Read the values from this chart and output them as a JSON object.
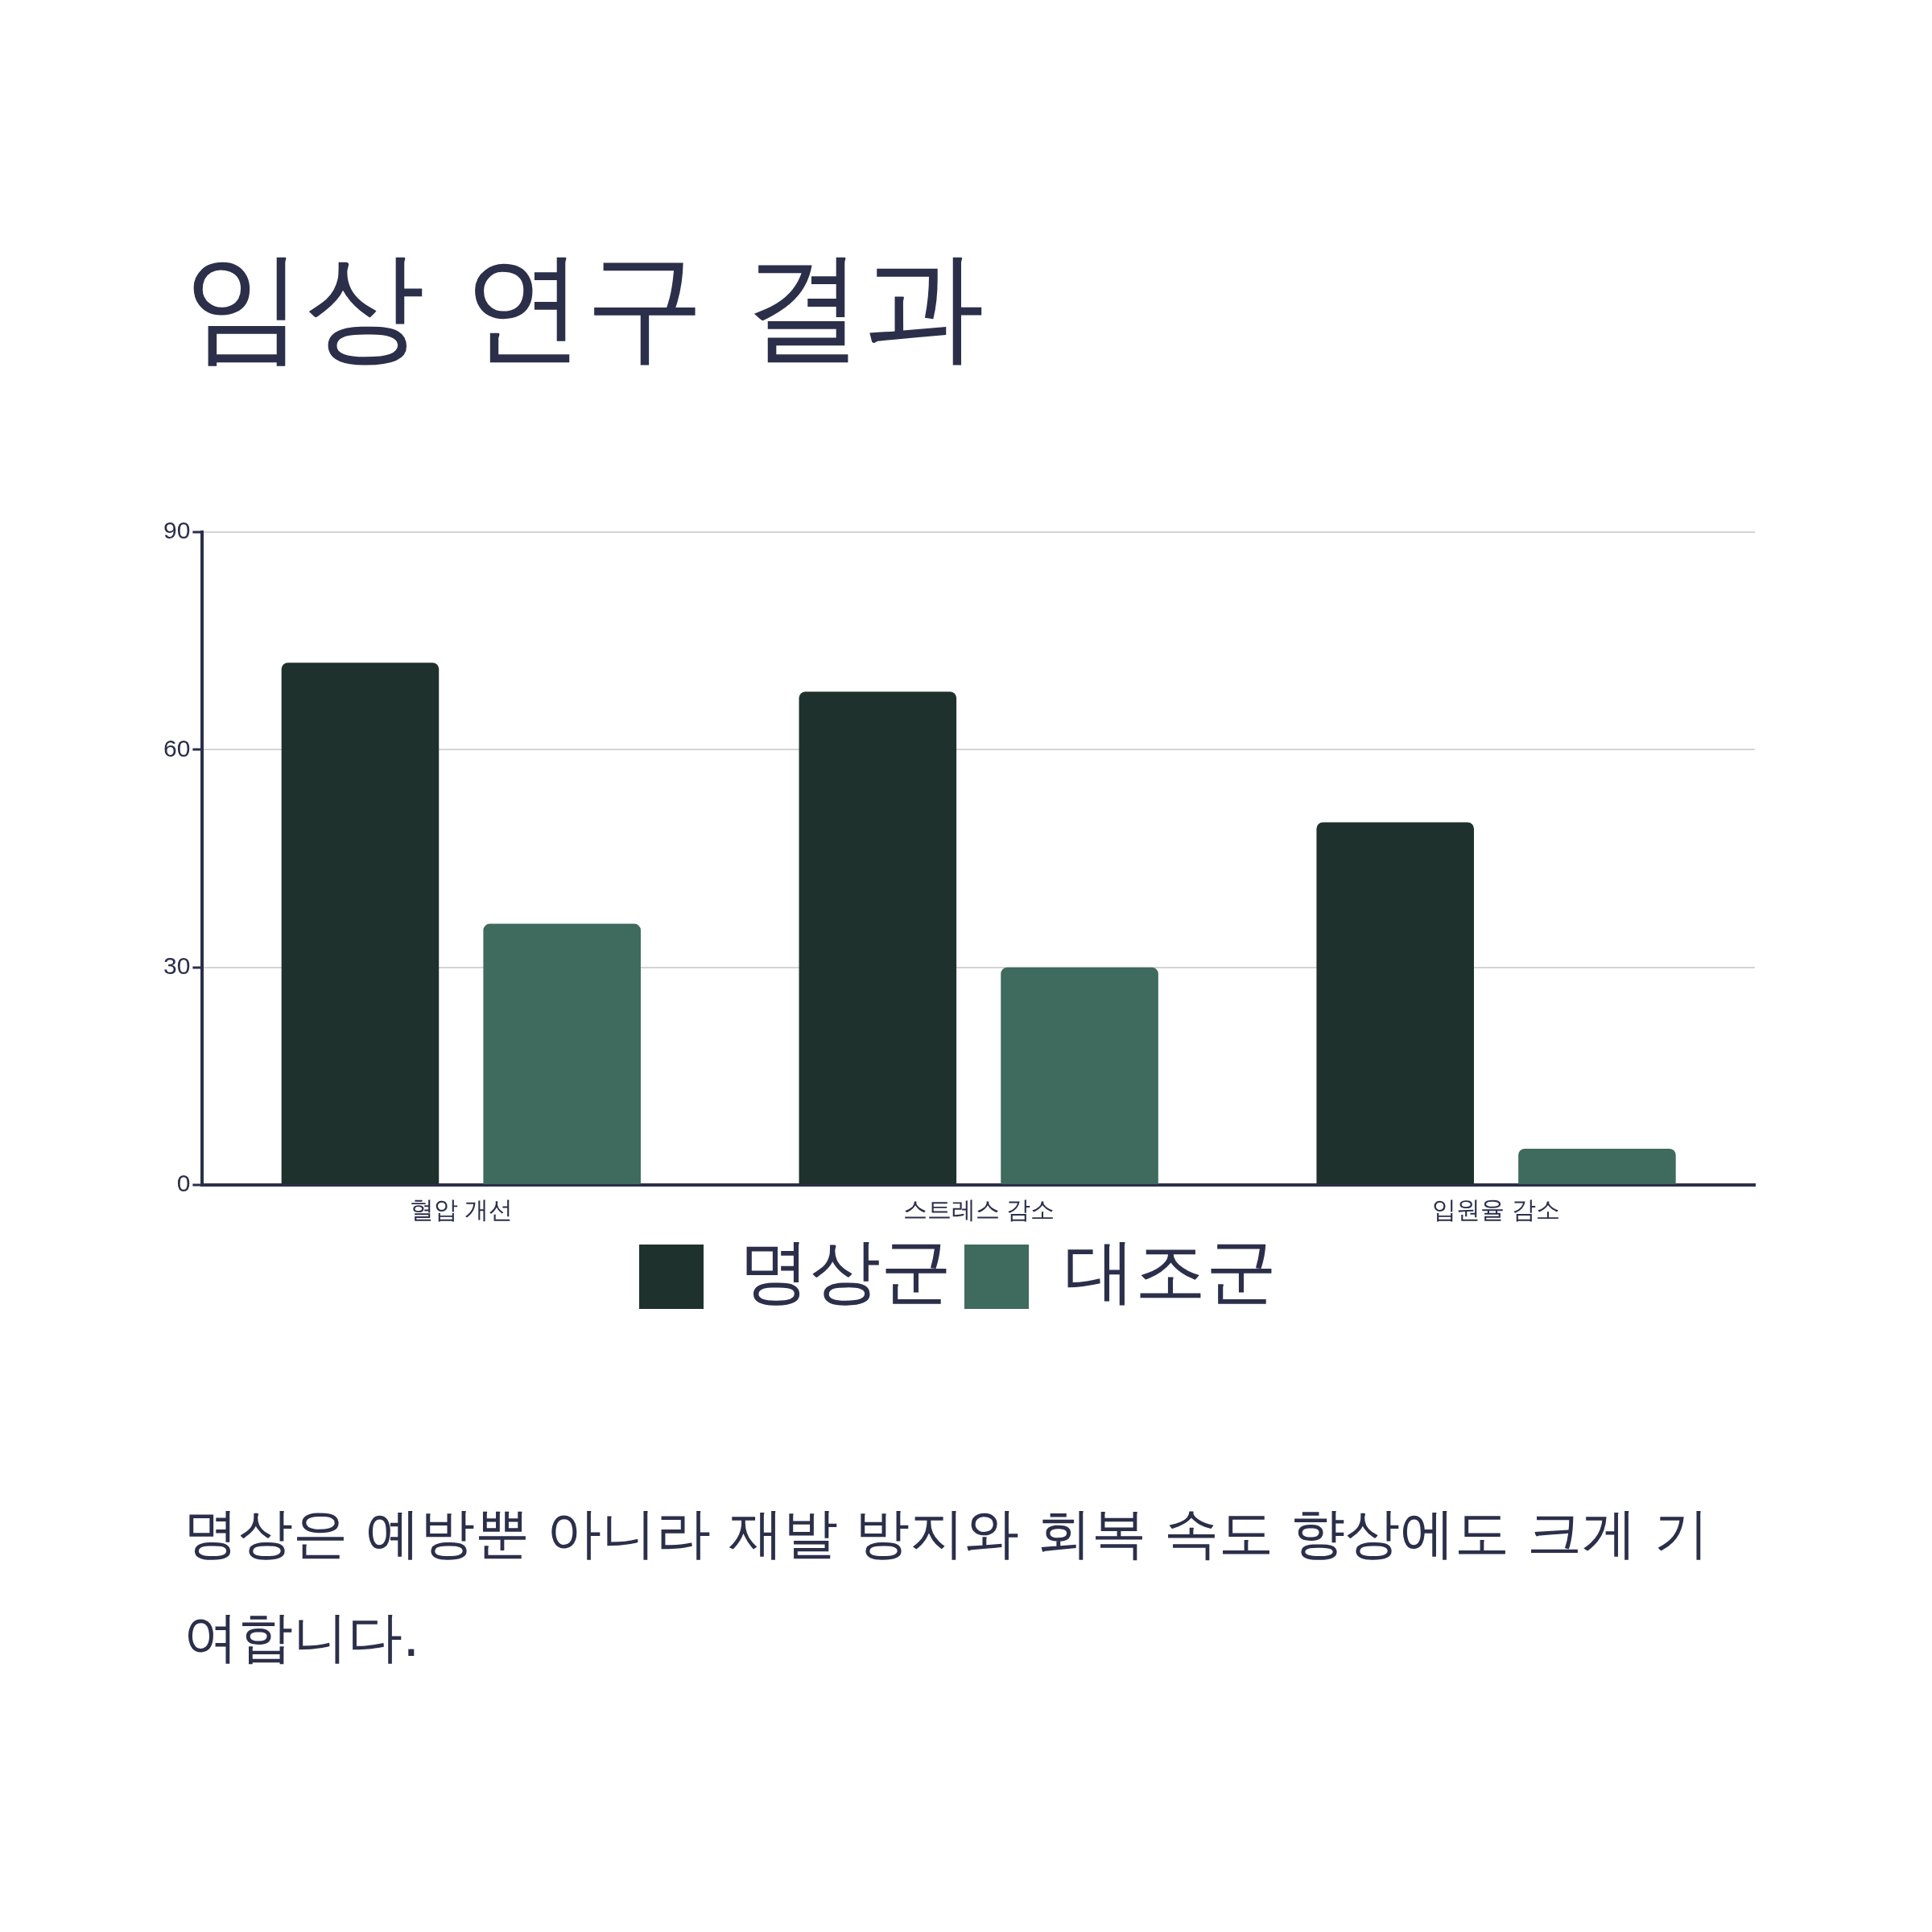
{
  "chart_data": {
    "type": "bar",
    "title": "임상 연구 결과",
    "categories": [
      "혈압 개선",
      "스트레스 감소",
      "입원율 감소"
    ],
    "series": [
      {
        "name": "명상군",
        "color": "#1f312d",
        "values": [
          72,
          68,
          50
        ]
      },
      {
        "name": "대조군",
        "color": "#3f6a5e",
        "values": [
          36,
          30,
          5
        ]
      }
    ],
    "ylim": [
      0,
      90
    ],
    "yticks": [
      0,
      30,
      60,
      90
    ],
    "grid": "y",
    "legend": "bottom",
    "annotations": [
      "명상은 예방뿐 아니라 재발 방지와 회복 속도 향상에도 크게 기여합니다."
    ]
  }
}
